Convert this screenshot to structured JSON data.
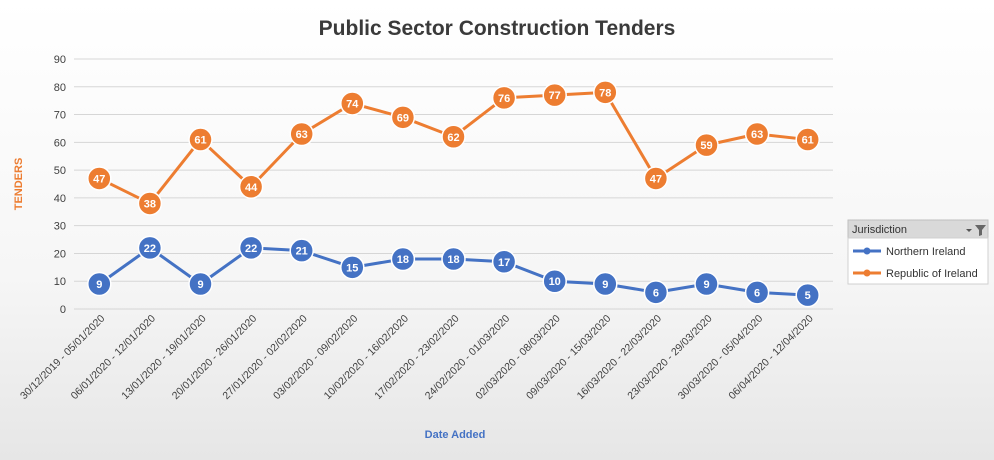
{
  "chart_data": {
    "type": "line",
    "title": "Public Sector Construction Tenders",
    "xlabel": "Date Added",
    "ylabel": "TENDERS",
    "ylim": [
      0,
      90
    ],
    "yticks": [
      0,
      10,
      20,
      30,
      40,
      50,
      60,
      70,
      80,
      90
    ],
    "grid": true,
    "legend_position": "right",
    "legend_title": "Jurisdiction",
    "categories": [
      "30/12/2019 - 05/01/2020",
      "06/01/2020 - 12/01/2020",
      "13/01/2020 - 19/01/2020",
      "20/01/2020 - 26/01/2020",
      "27/01/2020 - 02/02/2020",
      "03/02/2020 - 09/02/2020",
      "10/02/2020 - 16/02/2020",
      "17/02/2020 - 23/02/2020",
      "24/02/2020 - 01/03/2020",
      "02/03/2020 - 08/03/2020",
      "09/03/2020 - 15/03/2020",
      "16/03/2020 - 22/03/2020",
      "23/03/2020 - 29/03/2020",
      "30/03/2020 - 05/04/2020",
      "06/04/2020 - 12/04/2020"
    ],
    "series": [
      {
        "name": "Northern Ireland",
        "color": "#4472C4",
        "values": [
          9,
          22,
          9,
          22,
          21,
          15,
          18,
          18,
          17,
          10,
          9,
          6,
          9,
          6,
          5
        ]
      },
      {
        "name": "Republic of Ireland",
        "color": "#ED7D31",
        "values": [
          47,
          38,
          61,
          44,
          63,
          74,
          69,
          62,
          76,
          77,
          78,
          47,
          59,
          63,
          61
        ]
      }
    ]
  },
  "colors": {
    "axis_title": "#ED7D31",
    "xaxis_title": "#4472C4",
    "legend_header_bg": "#d9d9d9"
  },
  "icons": {
    "legend_filter": "filter-icon"
  }
}
